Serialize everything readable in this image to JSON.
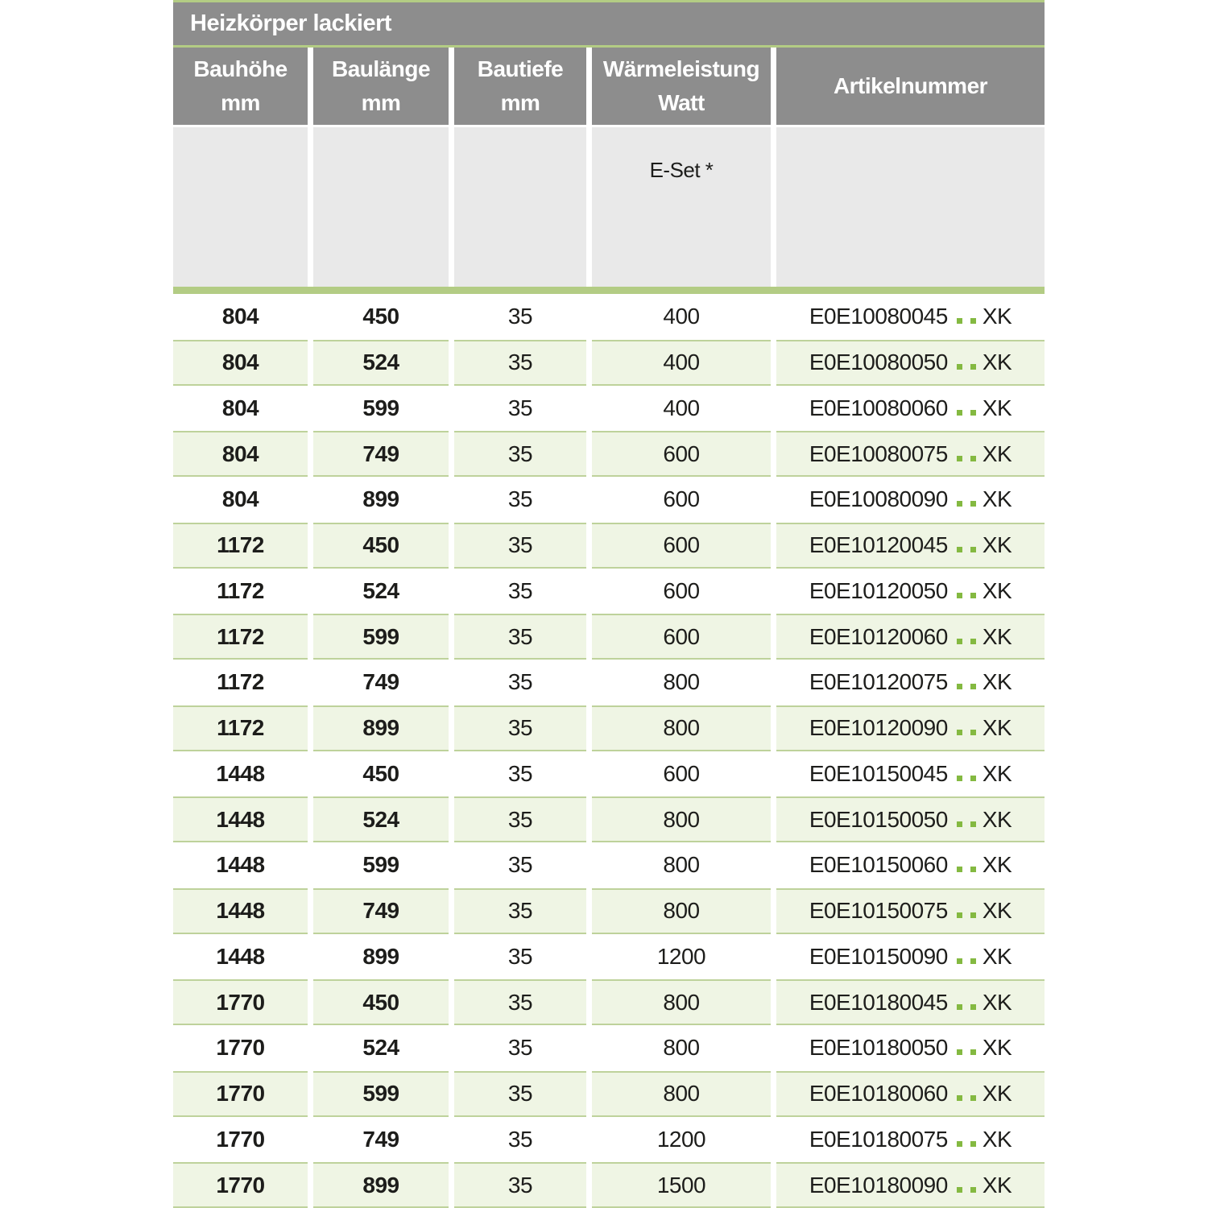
{
  "table": {
    "title": "Heizkörper lackiert",
    "columns": [
      {
        "label": "Bauhöhe",
        "unit": "mm"
      },
      {
        "label": "Baulänge",
        "unit": "mm"
      },
      {
        "label": "Bautiefe",
        "unit": "mm"
      },
      {
        "label": "Wärmeleistung",
        "unit": "Watt"
      },
      {
        "label": "Artikelnummer",
        "unit": ""
      }
    ],
    "subheader": {
      "e_set_label": "E-Set *"
    },
    "rows": [
      {
        "bauhoehe": "804",
        "baulaenge": "450",
        "bautiefe": "35",
        "watt": "400",
        "artikel_prefix": "E0E10080045",
        "artikel_dots": "..",
        "artikel_suffix": "XK"
      },
      {
        "bauhoehe": "804",
        "baulaenge": "524",
        "bautiefe": "35",
        "watt": "400",
        "artikel_prefix": "E0E10080050",
        "artikel_dots": "..",
        "artikel_suffix": "XK"
      },
      {
        "bauhoehe": "804",
        "baulaenge": "599",
        "bautiefe": "35",
        "watt": "400",
        "artikel_prefix": "E0E10080060",
        "artikel_dots": "..",
        "artikel_suffix": "XK"
      },
      {
        "bauhoehe": "804",
        "baulaenge": "749",
        "bautiefe": "35",
        "watt": "600",
        "artikel_prefix": "E0E10080075",
        "artikel_dots": "..",
        "artikel_suffix": "XK"
      },
      {
        "bauhoehe": "804",
        "baulaenge": "899",
        "bautiefe": "35",
        "watt": "600",
        "artikel_prefix": "E0E10080090",
        "artikel_dots": "..",
        "artikel_suffix": "XK"
      },
      {
        "bauhoehe": "1172",
        "baulaenge": "450",
        "bautiefe": "35",
        "watt": "600",
        "artikel_prefix": "E0E10120045",
        "artikel_dots": "..",
        "artikel_suffix": "XK"
      },
      {
        "bauhoehe": "1172",
        "baulaenge": "524",
        "bautiefe": "35",
        "watt": "600",
        "artikel_prefix": "E0E10120050",
        "artikel_dots": "..",
        "artikel_suffix": "XK"
      },
      {
        "bauhoehe": "1172",
        "baulaenge": "599",
        "bautiefe": "35",
        "watt": "600",
        "artikel_prefix": "E0E10120060",
        "artikel_dots": "..",
        "artikel_suffix": "XK"
      },
      {
        "bauhoehe": "1172",
        "baulaenge": "749",
        "bautiefe": "35",
        "watt": "800",
        "artikel_prefix": "E0E10120075",
        "artikel_dots": "..",
        "artikel_suffix": "XK"
      },
      {
        "bauhoehe": "1172",
        "baulaenge": "899",
        "bautiefe": "35",
        "watt": "800",
        "artikel_prefix": "E0E10120090",
        "artikel_dots": "..",
        "artikel_suffix": "XK"
      },
      {
        "bauhoehe": "1448",
        "baulaenge": "450",
        "bautiefe": "35",
        "watt": "600",
        "artikel_prefix": "E0E10150045",
        "artikel_dots": "..",
        "artikel_suffix": "XK"
      },
      {
        "bauhoehe": "1448",
        "baulaenge": "524",
        "bautiefe": "35",
        "watt": "800",
        "artikel_prefix": "E0E10150050",
        "artikel_dots": "..",
        "artikel_suffix": "XK"
      },
      {
        "bauhoehe": "1448",
        "baulaenge": "599",
        "bautiefe": "35",
        "watt": "800",
        "artikel_prefix": "E0E10150060",
        "artikel_dots": "..",
        "artikel_suffix": "XK"
      },
      {
        "bauhoehe": "1448",
        "baulaenge": "749",
        "bautiefe": "35",
        "watt": "800",
        "artikel_prefix": "E0E10150075",
        "artikel_dots": "..",
        "artikel_suffix": "XK"
      },
      {
        "bauhoehe": "1448",
        "baulaenge": "899",
        "bautiefe": "35",
        "watt": "1200",
        "artikel_prefix": "E0E10150090",
        "artikel_dots": "..",
        "artikel_suffix": "XK"
      },
      {
        "bauhoehe": "1770",
        "baulaenge": "450",
        "bautiefe": "35",
        "watt": "800",
        "artikel_prefix": "E0E10180045",
        "artikel_dots": "..",
        "artikel_suffix": "XK"
      },
      {
        "bauhoehe": "1770",
        "baulaenge": "524",
        "bautiefe": "35",
        "watt": "800",
        "artikel_prefix": "E0E10180050",
        "artikel_dots": "..",
        "artikel_suffix": "XK"
      },
      {
        "bauhoehe": "1770",
        "baulaenge": "599",
        "bautiefe": "35",
        "watt": "800",
        "artikel_prefix": "E0E10180060",
        "artikel_dots": "..",
        "artikel_suffix": "XK"
      },
      {
        "bauhoehe": "1770",
        "baulaenge": "749",
        "bautiefe": "35",
        "watt": "1200",
        "artikel_prefix": "E0E10180075",
        "artikel_dots": "..",
        "artikel_suffix": "XK"
      },
      {
        "bauhoehe": "1770",
        "baulaenge": "899",
        "bautiefe": "35",
        "watt": "1500",
        "artikel_prefix": "E0E10180090",
        "artikel_dots": "..",
        "artikel_suffix": "XK"
      }
    ]
  },
  "colors": {
    "header_gray": "#8d8d8d",
    "subheader_gray": "#e9e9e9",
    "accent_green": "#b3cc84",
    "row_tint_green": "#eff5e4",
    "row_border_green": "#bed29b",
    "dot_green": "#84b941",
    "text_dark": "#1d1d1b",
    "text_white": "#ffffff"
  }
}
